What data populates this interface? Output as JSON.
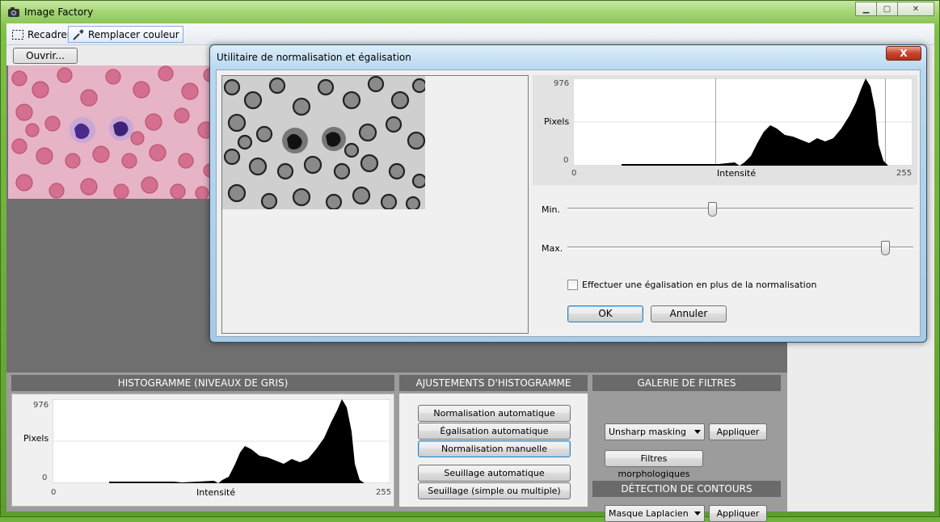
{
  "window": {
    "title": "Image Factory"
  },
  "toolbar": {
    "crop_label": "Recadrer",
    "replace_color_label": "Remplacer couleur"
  },
  "open_button": "Ouvrir...",
  "sections": {
    "histogram": "HISTOGRAMME  (NIVEAUX DE GRIS)",
    "adjustments": "AJUSTEMENTS D'HISTOGRAMME",
    "filters": "GALERIE DE FILTRES",
    "edges": "DÉTECTION DE CONTOURS"
  },
  "histogram": {
    "ymax": "976",
    "ymin": "0",
    "ylabel": "Pixels",
    "xlabel": "Intensité",
    "xmin": "0",
    "xmax": "255"
  },
  "adjust_buttons": [
    "Normalisation automatique",
    "Égalisation automatique",
    "Normalisation manuelle",
    "Seuillage automatique",
    "Seuillage (simple ou multiple)"
  ],
  "filters": {
    "selected": "Unsharp masking",
    "apply": "Appliquer",
    "morph": "Filtres morphologiques"
  },
  "edges": {
    "selected": "Masque Laplacien",
    "apply": "Appliquer"
  },
  "dialog": {
    "title": "Utilitaire de normalisation et égalisation",
    "close": "X",
    "min_label": "Min.",
    "max_label": "Max.",
    "min_value_fraction": 0.42,
    "max_value_fraction": 0.92,
    "equalize_label": "Effectuer une égalisation en plus de la normalisation",
    "equalize_checked": false,
    "ok": "OK",
    "cancel": "Annuler"
  },
  "colors": {
    "section_header": "#6a6a6a",
    "panel_bg": "#9c9c9c",
    "work_grey": "#6f6f6f",
    "accent": "#3c7fb1"
  }
}
